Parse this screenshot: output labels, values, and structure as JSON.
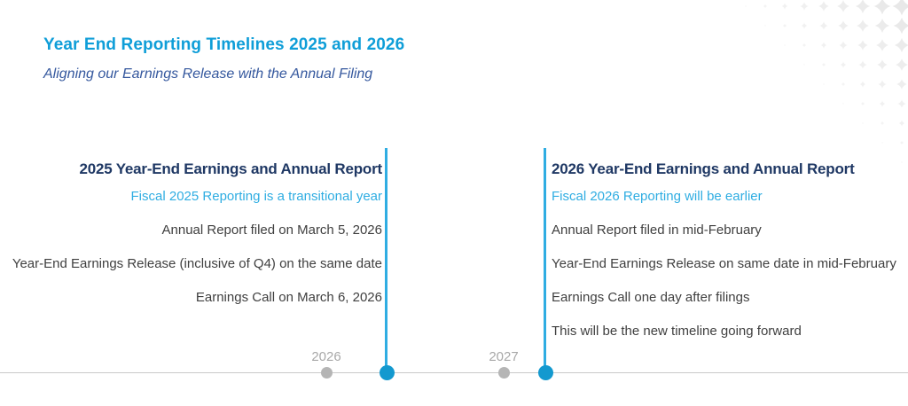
{
  "header": {
    "title": "Year End Reporting Timelines 2025 and 2026",
    "subtitle": "Aligning our Earnings Release with the Annual Filing"
  },
  "columns": {
    "left": {
      "heading": "2025 Year-End Earnings and Annual Report",
      "highlight": "Fiscal 2025 Reporting is a transitional year",
      "items": [
        "Annual Report filed on March 5, 2026",
        "Year-End Earnings Release (inclusive of Q4) on the same date",
        "Earnings Call on March 6, 2026"
      ]
    },
    "right": {
      "heading": "2026 Year-End Earnings and Annual Report",
      "highlight": "Fiscal 2026 Reporting will be earlier",
      "items": [
        "Annual Report filed in mid-February",
        "Year-End Earnings Release on same date in mid-February",
        "Earnings Call one day after filings",
        "This will be the new timeline going forward"
      ]
    }
  },
  "timeline": {
    "markers": [
      {
        "label": "2026",
        "type": "year-marker"
      },
      {
        "label": "",
        "type": "event-marker"
      },
      {
        "label": "2027",
        "type": "year-marker"
      },
      {
        "label": "",
        "type": "event-marker"
      }
    ]
  },
  "colors": {
    "title_cyan": "#0f9ed8",
    "accent_cyan": "#2fade2",
    "event_dot_cyan": "#1399cf",
    "heading_navy": "#1f3864",
    "subtitle_blue": "#35589e",
    "body_text": "#3f3f3f",
    "axis_gray": "#c9c9c9",
    "year_dot_gray": "#b5b5b5",
    "year_label_gray": "#a8a8a8",
    "pattern_gray": "#e8e8e8"
  }
}
